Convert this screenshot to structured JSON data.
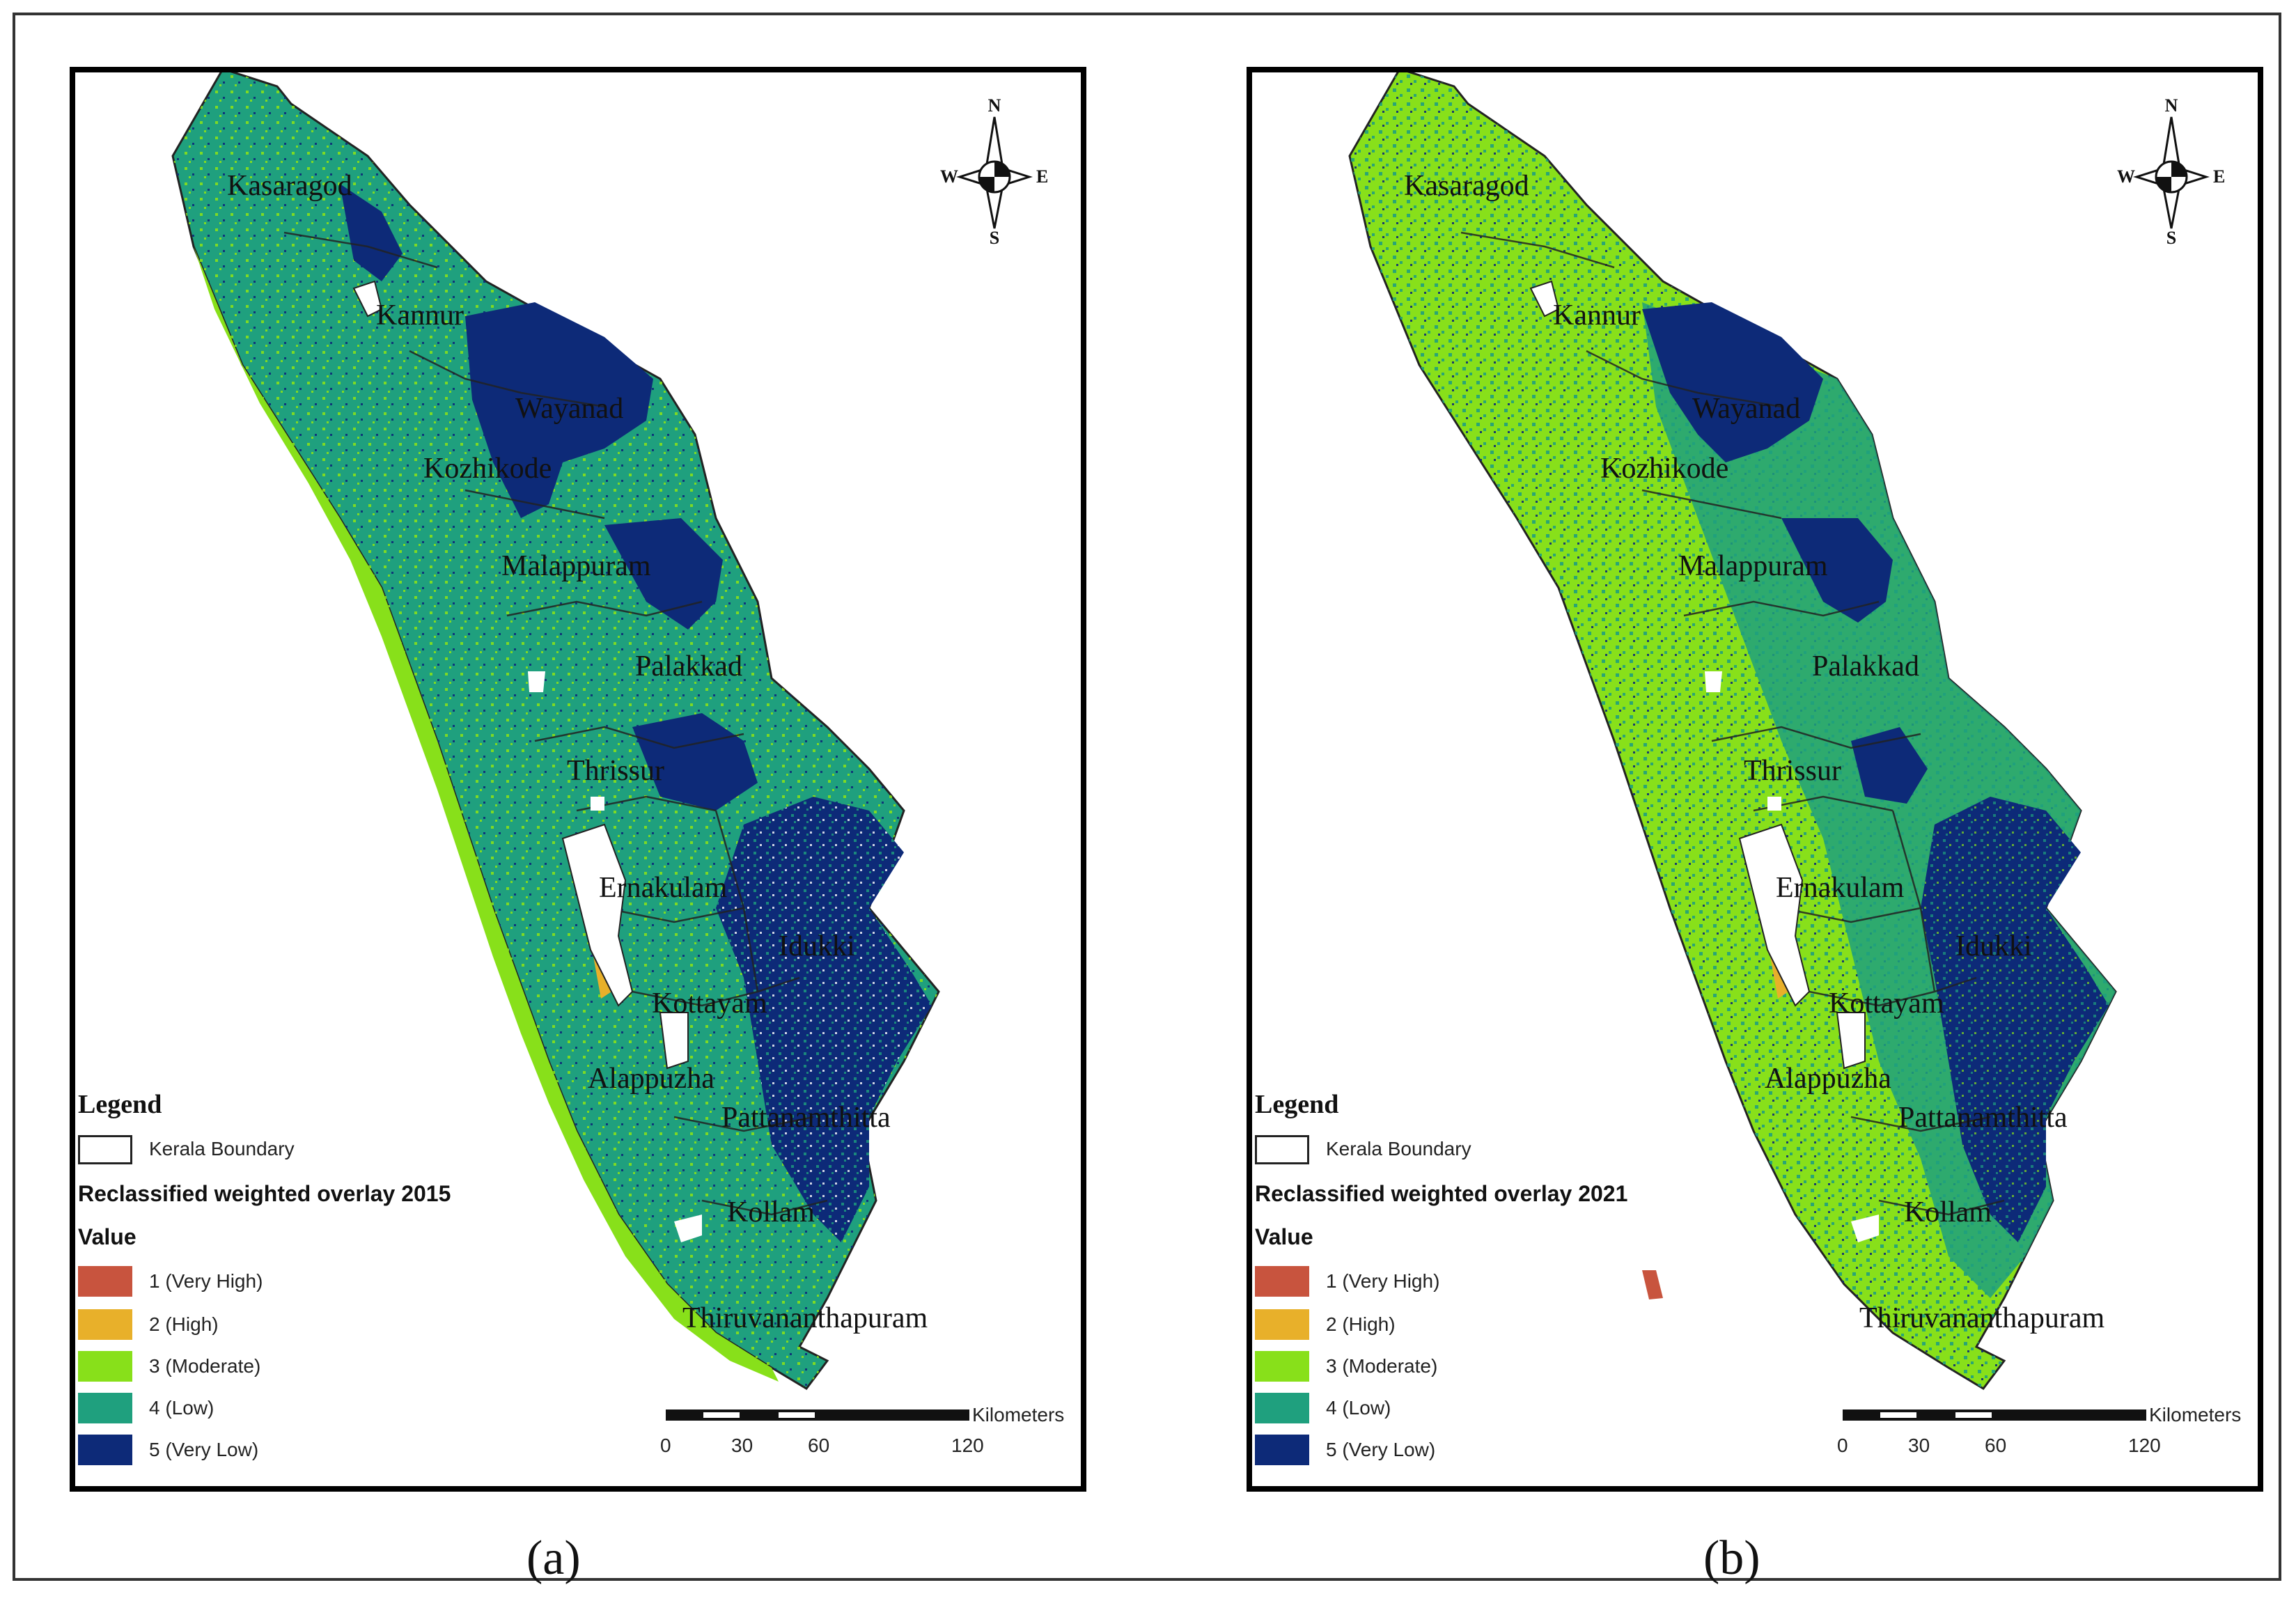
{
  "figure": {
    "caption_a": "(a)",
    "caption_b": "(b)"
  },
  "colors": {
    "very_high": "#c8543e",
    "high": "#e8b02a",
    "moderate": "#88e01a",
    "low": "#1fa07e",
    "very_low": "#0d2a78",
    "boundary": "#222222"
  },
  "compass": {
    "icon": "north-arrow-compass-icon",
    "n": "N",
    "s": "S",
    "e": "E",
    "w": "W"
  },
  "scale": {
    "unit": "Kilometers",
    "ticks": [
      "0",
      "30",
      "60",
      "120"
    ]
  },
  "districts": [
    "Kasaragod",
    "Kannur",
    "Wayanad",
    "Kozhikode",
    "Malappuram",
    "Palakkad",
    "Thrissur",
    "Ernakulam",
    "Idukki",
    "Kottayam",
    "Alappuzha",
    "Pattanamthitta",
    "Kollam",
    "Thiruvananthapuram"
  ],
  "panel_a": {
    "labels": {
      "kasaragod": "Kasaragod",
      "kannur": "Kannur",
      "wayanad": "Wayanad",
      "kozhikode": "Kozhikode",
      "malappuram": "Malappuram",
      "palakkad": "Palakkad",
      "thrissur": "Thrissur",
      "ernakulam": "Ernakulam",
      "idukki": "Idukki",
      "kottayam": "Kottayam",
      "alappuzha": "Alappuzha",
      "pattanamthitta": "Pattanamthitta",
      "kollam": "Kollam",
      "thiruvananthapuram": "Thiruvananthapuram"
    },
    "legend": {
      "title": "Legend",
      "boundary_label": "Kerala Boundary",
      "overlay_title": "Reclassified weighted overlay 2015",
      "value_title": "Value",
      "classes": [
        "1 (Very High)",
        "2 (High)",
        "3 (Moderate)",
        "4 (Low)",
        "5 (Very Low)"
      ]
    },
    "dominant_class": "4 (Low)"
  },
  "panel_b": {
    "labels": {
      "kasaragod": "Kasaragod",
      "kannur": "Kannur",
      "wayanad": "Wayanad",
      "kozhikode": "Kozhikode",
      "malappuram": "Malappuram",
      "palakkad": "Palakkad",
      "thrissur": "Thrissur",
      "ernakulam": "Ernakulam",
      "idukki": "Idukki",
      "kottayam": "Kottayam",
      "alappuzha": "Alappuzha",
      "pattanamthitta": "Pattanamthitta",
      "kollam": "Kollam",
      "thiruvananthapuram": "Thiruvananthapuram"
    },
    "legend": {
      "title": "Legend",
      "boundary_label": "Kerala Boundary",
      "overlay_title": "Reclassified weighted overlay 2021",
      "value_title": "Value",
      "classes": [
        "1 (Very High)",
        "2 (High)",
        "3 (Moderate)",
        "4 (Low)",
        "5 (Very Low)"
      ]
    },
    "dominant_class": "3 (Moderate)"
  }
}
